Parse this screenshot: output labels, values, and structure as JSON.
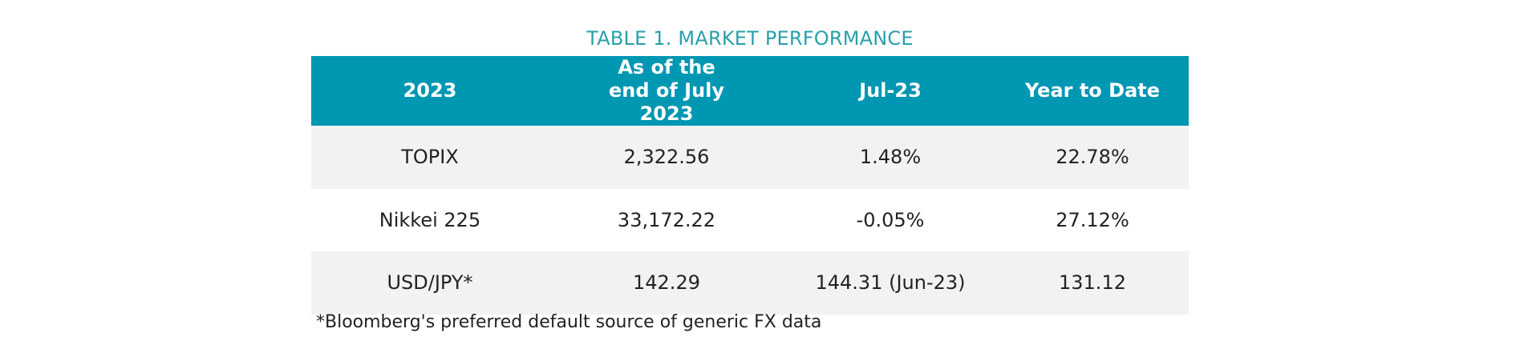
{
  "title": "TABLE 1. MARKET PERFORMANCE",
  "table": {
    "header": [
      "2023",
      "As of the end of July 2023",
      "Jul-23",
      "Year to Date"
    ],
    "rows": [
      [
        "TOPIX",
        "2,322.56",
        "1.48%",
        "22.78%"
      ],
      [
        "Nikkei 225",
        "33,172.22",
        "-0.05%",
        "27.12%"
      ],
      [
        "USD/JPY*",
        "142.29",
        "144.31 (Jun-23)",
        "131.12"
      ]
    ]
  },
  "footnote": "*Bloomberg's preferred default source of generic FX data"
}
